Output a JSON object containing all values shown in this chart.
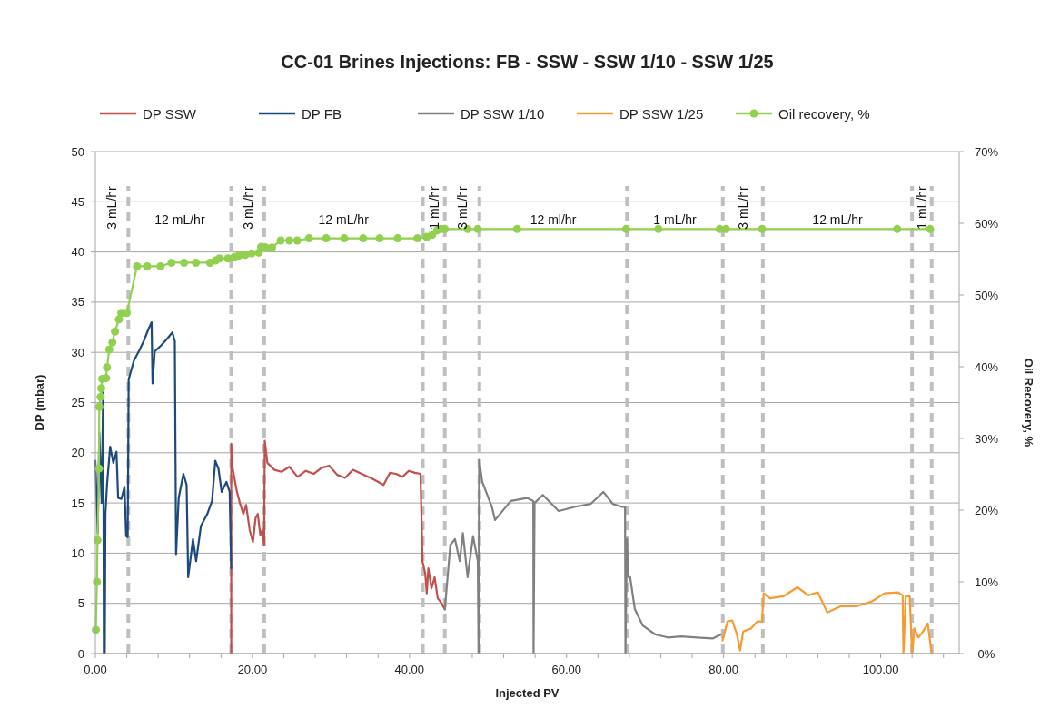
{
  "chart_data": {
    "type": "line",
    "title": "CC-01 Brines Injections: FB - SSW - SSW 1/10 - SSW 1/25",
    "xlabel": "Injected PV",
    "ylabel": "DP (mbar)",
    "y2label": "Oil Recovery, %",
    "xlim": [
      0,
      110
    ],
    "xticks": [
      {
        "value": 0,
        "label": "0.00"
      },
      {
        "value": 4,
        "label": null
      },
      {
        "value": 8,
        "label": null
      },
      {
        "value": 12,
        "label": null
      },
      {
        "value": 16,
        "label": null
      },
      {
        "value": 20,
        "label": "20.00"
      },
      {
        "value": 24,
        "label": null
      },
      {
        "value": 28,
        "label": null
      },
      {
        "value": 32,
        "label": null
      },
      {
        "value": 36,
        "label": null
      },
      {
        "value": 40,
        "label": "40.00"
      },
      {
        "value": 44,
        "label": null
      },
      {
        "value": 48,
        "label": null
      },
      {
        "value": 52,
        "label": null
      },
      {
        "value": 56,
        "label": null
      },
      {
        "value": 60,
        "label": "60.00"
      },
      {
        "value": 64,
        "label": null
      },
      {
        "value": 68,
        "label": null
      },
      {
        "value": 72,
        "label": null
      },
      {
        "value": 76,
        "label": null
      },
      {
        "value": 80,
        "label": "80.00"
      },
      {
        "value": 84,
        "label": null
      },
      {
        "value": 88,
        "label": null
      },
      {
        "value": 92,
        "label": null
      },
      {
        "value": 96,
        "label": null
      },
      {
        "value": 100,
        "label": "100.00"
      },
      {
        "value": 104,
        "label": null
      },
      {
        "value": 108,
        "label": null
      }
    ],
    "ylim": [
      0,
      50
    ],
    "yticks": [
      0,
      5,
      10,
      15,
      20,
      25,
      30,
      35,
      40,
      45,
      50
    ],
    "y2lim": [
      0,
      70
    ],
    "y2ticks": [
      {
        "value": 0,
        "label": "0%"
      },
      {
        "value": 10,
        "label": "10%"
      },
      {
        "value": 20,
        "label": "20%"
      },
      {
        "value": 30,
        "label": "30%"
      },
      {
        "value": 40,
        "label": "40%"
      },
      {
        "value": 50,
        "label": "50%"
      },
      {
        "value": 60,
        "label": "60%"
      },
      {
        "value": 70,
        "label": "70%"
      }
    ],
    "grid": "y",
    "legend": "top",
    "line_style": "solid",
    "series": [
      {
        "name": "DP SSW",
        "color": "#c0504d",
        "x": [
          17.3,
          17.3,
          17.43,
          17.7,
          18.0,
          18.4,
          18.84,
          19.2,
          19.65,
          20.07,
          20.4,
          20.68,
          21.0,
          21.28,
          21.49,
          21.57,
          21.9,
          22.8,
          23.7,
          24.7,
          25.75,
          26.8,
          27.8,
          28.8,
          29.8,
          30.8,
          31.8,
          32.8,
          33.9,
          35.3,
          36.7,
          37.5,
          38.3,
          39.1,
          39.9,
          40.7,
          41.4,
          41.6,
          41.65,
          42.0,
          42.2,
          42.4,
          42.8,
          43.2,
          43.6,
          44.0,
          44.5
        ],
        "values": [
          0,
          20.9,
          18.7,
          17.5,
          16.2,
          15.0,
          13.9,
          14.8,
          12.3,
          11.1,
          13.5,
          13.9,
          11.8,
          12.3,
          10.8,
          21.2,
          19.0,
          18.3,
          18.1,
          18.6,
          17.6,
          18.2,
          17.9,
          18.5,
          18.7,
          17.8,
          17.5,
          18.3,
          17.9,
          17.4,
          16.8,
          18.0,
          17.9,
          17.6,
          18.2,
          18.0,
          17.9,
          11.4,
          9.2,
          8.0,
          6.0,
          8.5,
          6.5,
          7.6,
          5.5,
          5.1,
          4.4
        ]
      },
      {
        "name": "DP FB",
        "color": "#1f497d",
        "x": [
          0,
          0.3,
          0.5,
          0.8,
          1.0,
          1.08,
          1.2,
          1.28,
          1.5,
          1.88,
          2.29,
          2.69,
          2.9,
          3.31,
          3.71,
          3.92,
          4.12,
          4.24,
          4.92,
          5.54,
          6.15,
          6.75,
          7.16,
          7.28,
          7.56,
          8.38,
          9.19,
          9.8,
          10.12,
          10.28,
          10.61,
          11.21,
          11.62,
          11.82,
          12.43,
          12.83,
          13.44,
          14.25,
          14.86,
          15.27,
          15.68,
          16.08,
          16.69,
          17.1,
          17.3
        ],
        "values": [
          19.2,
          12,
          22,
          15,
          26.5,
          0,
          0,
          13.9,
          17,
          20.6,
          19,
          20.1,
          15.5,
          15.4,
          16.6,
          11.7,
          11.6,
          27.3,
          29.2,
          30.1,
          31.1,
          32.3,
          33.0,
          26.9,
          30.1,
          30.7,
          31.4,
          32.0,
          31.1,
          9.9,
          15.5,
          17.9,
          16.8,
          7.6,
          11.4,
          9.2,
          12.7,
          13.9,
          15.2,
          19.2,
          18.4,
          16.1,
          17.1,
          16.1,
          8.5
        ]
      },
      {
        "name": "DP SSW 1/10",
        "color": "#808080",
        "x": [
          44.5,
          45.2,
          45.8,
          46.4,
          46.8,
          47.4,
          48.1,
          48.7,
          48.8,
          48.87,
          49.27,
          50.5,
          50.9,
          52.9,
          54.96,
          55.77,
          55.8,
          55.93,
          56.98,
          59.0,
          61.0,
          63.06,
          64.69,
          65.9,
          67.12,
          67.45,
          67.5,
          67.7,
          67.9,
          68.1,
          68.7,
          69.7,
          71.3,
          72.9,
          74.6,
          76.6,
          78.6,
          79.65
        ],
        "values": [
          4.4,
          10.8,
          11.4,
          9.2,
          12.0,
          7.6,
          11.7,
          9.2,
          0,
          19.3,
          17.1,
          14.6,
          13.3,
          15.2,
          15.5,
          15.2,
          0,
          15.0,
          15.8,
          14.2,
          14.6,
          14.9,
          16.1,
          14.9,
          14.6,
          14.6,
          0,
          11.4,
          7.6,
          7.6,
          4.4,
          2.8,
          1.9,
          1.6,
          1.7,
          1.6,
          1.5,
          1.9
        ]
      },
      {
        "name": "DP SSW 1/25",
        "color": "#f79a32",
        "x": [
          79.86,
          80.5,
          81.1,
          81.7,
          82.1,
          82.5,
          83.5,
          84.3,
          84.9,
          85.1,
          85.9,
          87.6,
          89.4,
          90.8,
          92.0,
          93.2,
          94.9,
          96.9,
          98.9,
          100.5,
          102.2,
          102.8,
          102.9,
          103.2,
          103.7,
          104.0,
          104.3,
          104.8,
          105.4,
          106.0,
          106.4,
          106.6
        ],
        "values": [
          1.3,
          3.2,
          3.3,
          1.9,
          0.3,
          2.2,
          2.5,
          3.2,
          3.2,
          6.0,
          5.5,
          5.7,
          6.6,
          5.8,
          6.1,
          4.1,
          4.7,
          4.7,
          5.2,
          6.0,
          6.1,
          5.8,
          0,
          5.7,
          5.7,
          0,
          2.5,
          1.6,
          2.2,
          3.0,
          0.6,
          0
        ]
      },
      {
        "name": "Oil recovery, %",
        "color": "#92d050",
        "axis": "y2",
        "marker": "circle",
        "x": [
          0.06,
          0.2,
          0.27,
          0.46,
          0.5,
          0.67,
          0.75,
          0.87,
          1.36,
          1.48,
          1.77,
          2.17,
          2.5,
          3.0,
          3.3,
          4.0,
          5.3,
          6.6,
          8.3,
          9.7,
          11.3,
          12.8,
          14.6,
          15.3,
          15.8,
          16.9,
          17.7,
          18.3,
          19.1,
          19.9,
          20.8,
          21.1,
          21.7,
          22.5,
          23.6,
          24.7,
          25.7,
          27.2,
          29.4,
          31.7,
          34.1,
          36.2,
          38.5,
          41.0,
          42.2,
          42.9,
          43.5,
          44.0,
          44.5,
          47.4,
          48.7,
          53.7,
          67.6,
          71.7,
          79.5,
          80.3,
          84.9,
          102.1,
          106.3
        ],
        "values": [
          3.3,
          10.0,
          15.8,
          25.8,
          34.4,
          35.8,
          37.0,
          38.3,
          38.4,
          39.9,
          42.4,
          43.4,
          44.9,
          46.6,
          47.5,
          47.5,
          54.0,
          54.0,
          54.0,
          54.5,
          54.5,
          54.5,
          54.5,
          54.8,
          55.1,
          55.1,
          55.3,
          55.5,
          55.6,
          55.8,
          55.9,
          56.7,
          56.6,
          56.6,
          57.6,
          57.6,
          57.6,
          57.9,
          57.9,
          57.9,
          57.9,
          57.9,
          57.9,
          57.9,
          58.1,
          58.4,
          59.0,
          59.2,
          59.2,
          59.2,
          59.2,
          59.2,
          59.2,
          59.2,
          59.2,
          59.2,
          59.2,
          59.2,
          59.2
        ]
      }
    ],
    "ref_lines": [
      {
        "axis": "x",
        "value": 4.2,
        "color": "#bfbfbf",
        "line_style": "dashed"
      },
      {
        "axis": "x",
        "value": 17.3,
        "color": "#bfbfbf",
        "line_style": "dashed"
      },
      {
        "axis": "x",
        "value": 21.5,
        "color": "#bfbfbf",
        "line_style": "dashed"
      },
      {
        "axis": "x",
        "value": 41.7,
        "color": "#bfbfbf",
        "line_style": "dashed"
      },
      {
        "axis": "x",
        "value": 44.5,
        "color": "#bfbfbf",
        "line_style": "dashed"
      },
      {
        "axis": "x",
        "value": 48.9,
        "color": "#bfbfbf",
        "line_style": "dashed"
      },
      {
        "axis": "x",
        "value": 67.7,
        "color": "#bfbfbf",
        "line_style": "dashed"
      },
      {
        "axis": "x",
        "value": 79.9,
        "color": "#bfbfbf",
        "line_style": "dashed"
      },
      {
        "axis": "x",
        "value": 85.0,
        "color": "#bfbfbf",
        "line_style": "dashed"
      },
      {
        "axis": "x",
        "value": 104.0,
        "color": "#bfbfbf",
        "line_style": "dashed"
      },
      {
        "axis": "x",
        "value": 106.5,
        "color": "#bfbfbf",
        "line_style": "dashed"
      }
    ],
    "annotations": [
      "3 mL/hr",
      "12 mL/hr",
      "3 mL/hr",
      "12 mL/hr",
      "1 mL/hr",
      "3 mL/hr",
      "12 ml/hr",
      "1 mL/hr",
      "3 mL/hr",
      "12 mL/hr",
      "1 mL/hr"
    ]
  }
}
